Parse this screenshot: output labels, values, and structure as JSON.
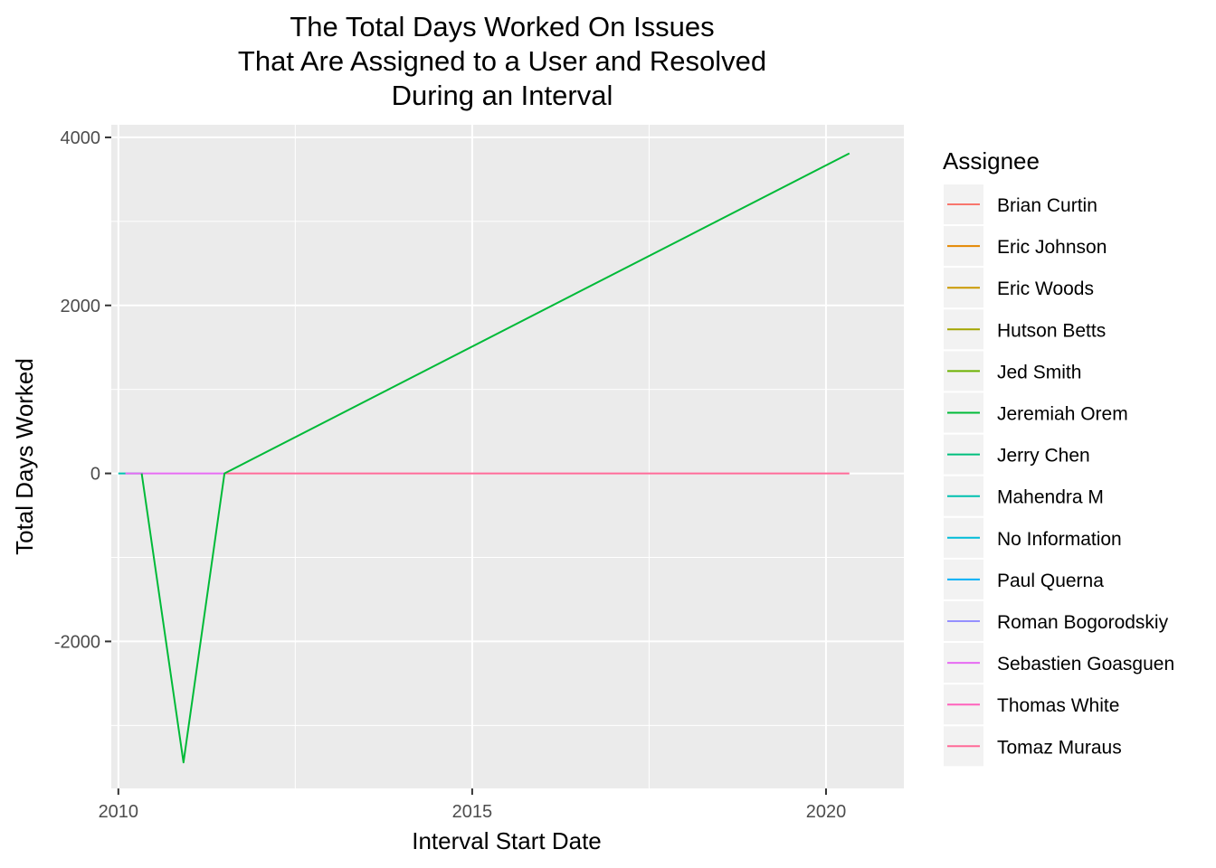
{
  "chart_data": {
    "type": "line",
    "title": [
      "The Total Days Worked On Issues",
      "That Are Assigned to a User and Resolved",
      "During an Interval"
    ],
    "xlabel": "Interval Start Date",
    "ylabel": "Total Days Worked",
    "xlim": [
      2009.9,
      2021.1
    ],
    "ylim": [
      -3750,
      4150
    ],
    "x_ticks": [
      2010,
      2015,
      2020
    ],
    "y_ticks": [
      -2000,
      0,
      2000,
      4000
    ],
    "grid": true,
    "legend": {
      "title": "Assignee",
      "position": "right",
      "entries": [
        {
          "name": "Brian Curtin",
          "color": "#F8766D"
        },
        {
          "name": "Eric Johnson",
          "color": "#E58700"
        },
        {
          "name": "Eric Woods",
          "color": "#C99800"
        },
        {
          "name": "Hutson Betts",
          "color": "#A3A500"
        },
        {
          "name": "Jed Smith",
          "color": "#6BB100"
        },
        {
          "name": "Jeremiah Orem",
          "color": "#00BA38"
        },
        {
          "name": "Jerry Chen",
          "color": "#00BF7D"
        },
        {
          "name": "Mahendra M",
          "color": "#00C0AF"
        },
        {
          "name": "No Information",
          "color": "#00BCD8"
        },
        {
          "name": "Paul Querna",
          "color": "#00B0F6"
        },
        {
          "name": "Roman Bogorodskiy",
          "color": "#9590FF"
        },
        {
          "name": "Sebastien Goasguen",
          "color": "#E76BF3"
        },
        {
          "name": "Thomas White",
          "color": "#FF62BC"
        },
        {
          "name": "Tomaz Muraus",
          "color": "#FF6A98"
        }
      ]
    },
    "series": [
      {
        "name": "Mahendra M",
        "color": "#00C0AF",
        "x": [
          2010.0,
          2010.35
        ],
        "y": [
          0,
          0
        ]
      },
      {
        "name": "Sebastien Goasguen",
        "color": "#E76BF3",
        "x": [
          2010.1,
          2011.5
        ],
        "y": [
          0,
          0
        ]
      },
      {
        "name": "Tomaz Muraus",
        "color": "#FF6A98",
        "x": [
          2011.5,
          2020.33
        ],
        "y": [
          0,
          0
        ]
      },
      {
        "name": "Jeremiah Orem",
        "color": "#00BA38",
        "x": [
          2010.33,
          2010.92,
          2011.5,
          2020.33
        ],
        "y": [
          0,
          -3440,
          0,
          3810
        ]
      }
    ]
  }
}
